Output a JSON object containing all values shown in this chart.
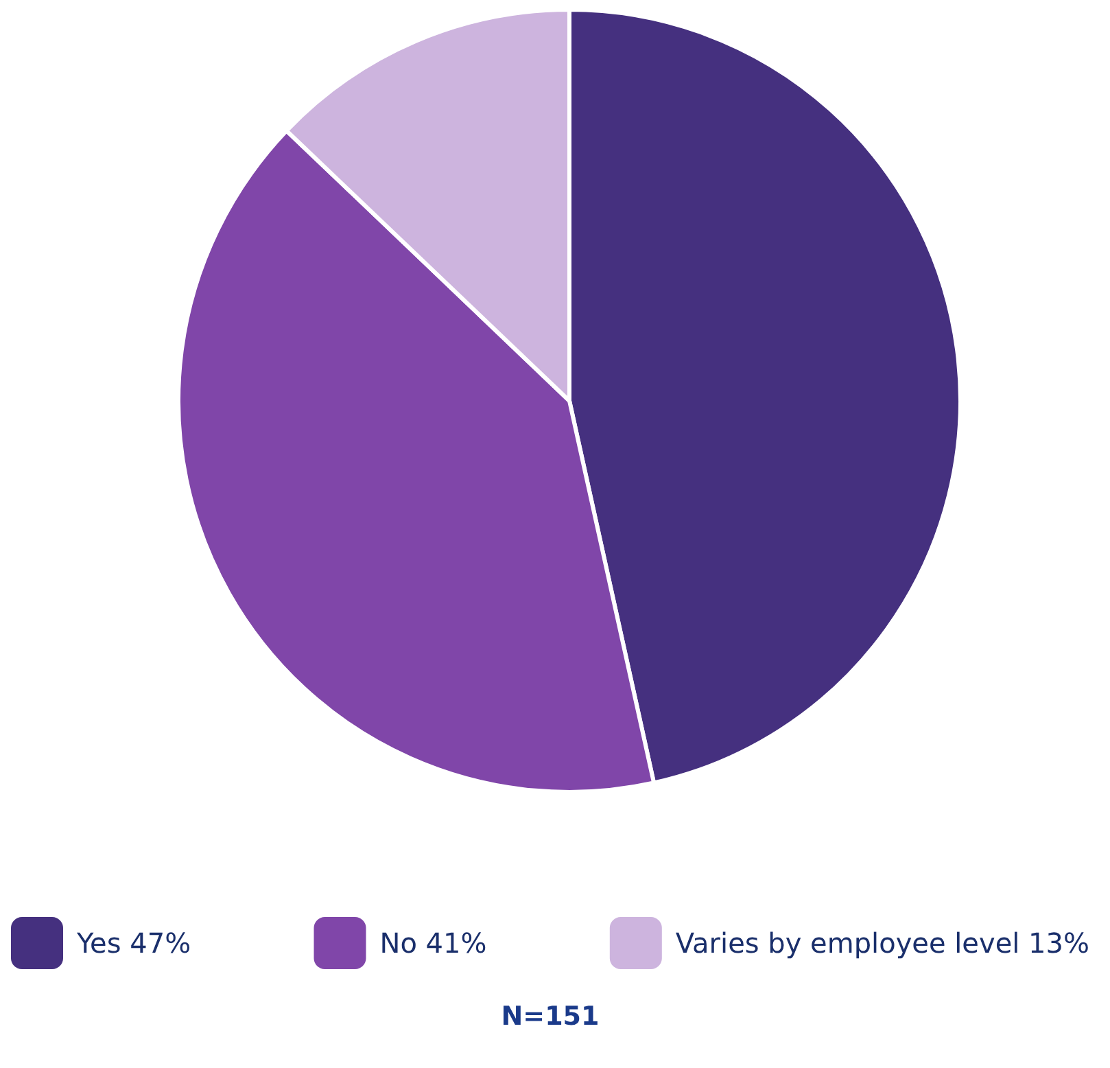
{
  "chart_data": {
    "type": "pie",
    "categories": [
      "Yes",
      "No",
      "Varies by employee level"
    ],
    "values": [
      47,
      41,
      13
    ],
    "value_labels": [
      "47%",
      "41%",
      "13%"
    ],
    "colors": [
      "#45307f",
      "#8046a9",
      "#cdb4de"
    ],
    "legend": "bottom",
    "annotations": [
      "N=151"
    ]
  }
}
